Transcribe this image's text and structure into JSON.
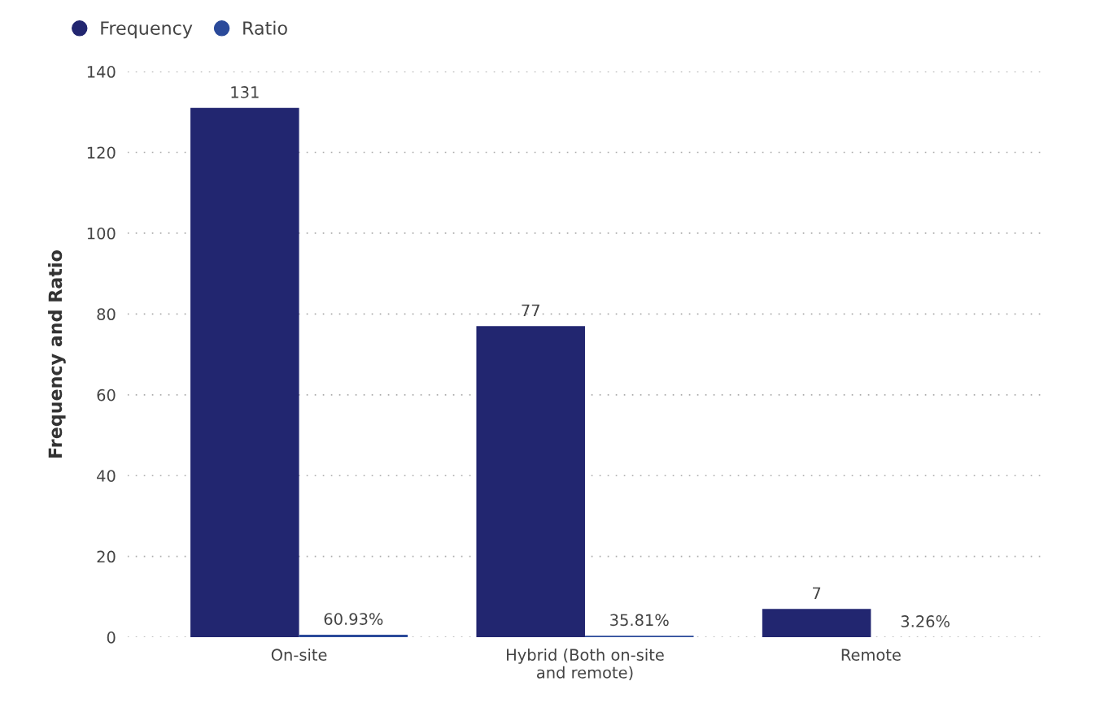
{
  "chart_data": {
    "type": "bar",
    "ylabel": "Frequency and Ratio",
    "categories": [
      "On-site",
      "Hybrid (Both on-site\nand remote)",
      "Remote"
    ],
    "series": [
      {
        "name": "Frequency",
        "color": "#222670",
        "values": [
          131,
          77,
          7
        ],
        "value_labels": [
          "131",
          "77",
          "7"
        ]
      },
      {
        "name": "Ratio",
        "color": "#2b4a9a",
        "values": [
          0.6093,
          0.3581,
          0.0326
        ],
        "value_labels": [
          "60.93%",
          "35.81%",
          "3.26%"
        ]
      }
    ],
    "ylim": [
      0,
      140
    ],
    "yticks": [
      0,
      20,
      40,
      60,
      80,
      100,
      120,
      140
    ],
    "grid": "y",
    "legend": "top left"
  }
}
